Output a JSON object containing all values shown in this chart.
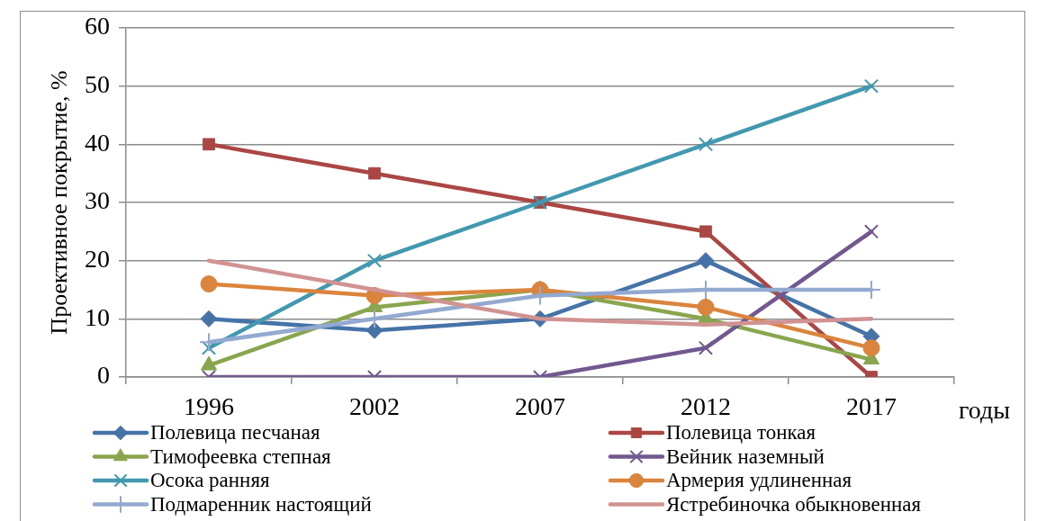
{
  "chart_data": {
    "type": "line",
    "xlabel": "годы",
    "ylabel": "Проективное покрытие, %",
    "categories": [
      "1996",
      "2002",
      "2007",
      "2012",
      "2017"
    ],
    "ylim": [
      0,
      60
    ],
    "yticks": [
      0,
      10,
      20,
      30,
      40,
      50,
      60
    ],
    "grid": "y",
    "legend": "bottom",
    "line_style": "solid",
    "series": [
      {
        "name": "Полевица песчаная",
        "color": "#4572a7",
        "marker": "diamond",
        "values": [
          10,
          8,
          10,
          20,
          7
        ]
      },
      {
        "name": "Полевица тонкая",
        "color": "#aa4643",
        "marker": "square",
        "values": [
          40,
          35,
          30,
          25,
          0
        ]
      },
      {
        "name": "Тимофеевка степная",
        "color": "#89a54e",
        "marker": "triangle",
        "values": [
          2,
          12,
          15,
          10,
          3
        ]
      },
      {
        "name": "Вейник наземный",
        "color": "#71588f",
        "marker": "cross",
        "values": [
          0,
          0,
          0,
          5,
          25
        ]
      },
      {
        "name": "Осока ранняя",
        "color": "#4198af",
        "marker": "cross",
        "values": [
          5,
          20,
          30,
          40,
          50
        ]
      },
      {
        "name": "Армерия удлиненная",
        "color": "#db843d",
        "marker": "circle",
        "values": [
          16,
          14,
          15,
          12,
          5
        ]
      },
      {
        "name": "Подмаренник настоящий",
        "color": "#93a9cf",
        "marker": "plus",
        "values": [
          6,
          10,
          14,
          15,
          15
        ]
      },
      {
        "name": "Ястребиночка обыкновенная",
        "color": "#d19392",
        "marker": "none",
        "values": [
          20,
          15,
          10,
          9,
          10
        ]
      }
    ]
  }
}
